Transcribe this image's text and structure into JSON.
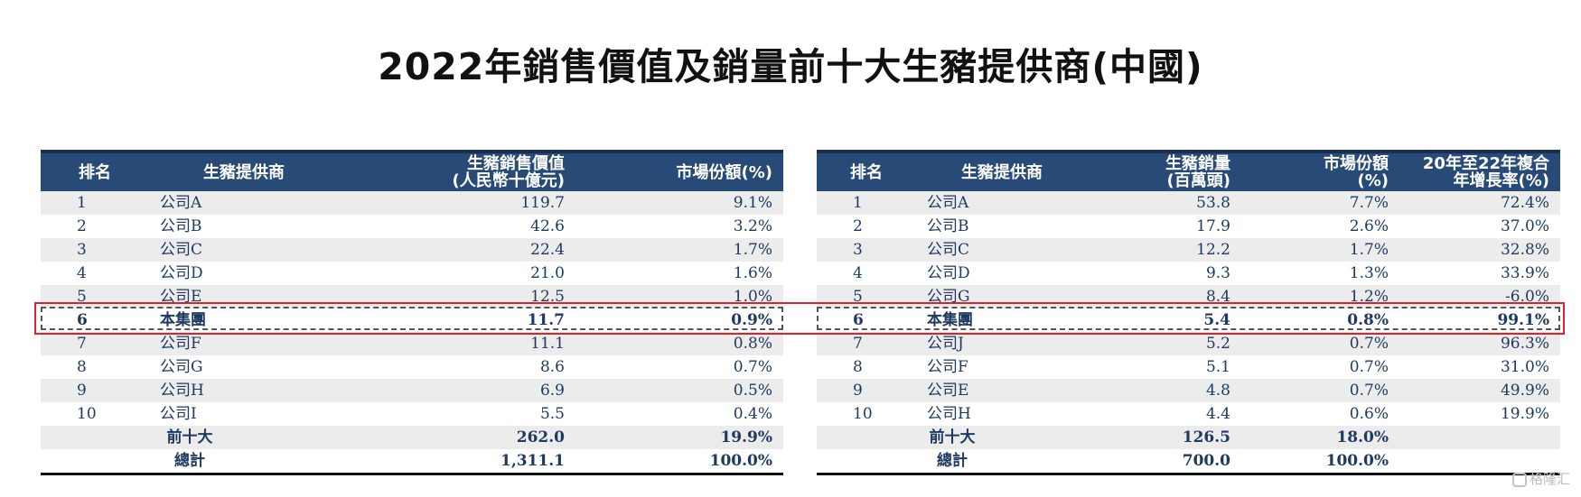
{
  "title": "2022年銷售價值及銷量前十大生豬提供商(中國)",
  "left_table": {
    "headers": [
      "排名",
      "生豬提供商",
      "生豬銷售價值\n(人民幣十億元)",
      "市場份額(%)"
    ],
    "rows": [
      [
        "1",
        "公司A",
        "119.7",
        "9.1%"
      ],
      [
        "2",
        "公司B",
        "42.6",
        "3.2%"
      ],
      [
        "3",
        "公司C",
        "22.4",
        "1.7%"
      ],
      [
        "4",
        "公司D",
        "21.0",
        "1.6%"
      ],
      [
        "5",
        "公司E",
        "12.5",
        "1.0%"
      ],
      [
        "6",
        "本集團",
        "11.7",
        "0.9%"
      ],
      [
        "7",
        "公司F",
        "11.1",
        "0.8%"
      ],
      [
        "8",
        "公司G",
        "8.6",
        "0.7%"
      ],
      [
        "9",
        "公司H",
        "6.9",
        "0.5%"
      ],
      [
        "10",
        "公司I",
        "5.5",
        "0.4%"
      ]
    ],
    "totals": [
      [
        "前十大",
        "262.0",
        "19.9%"
      ],
      [
        "總計",
        "1,311.1",
        "100.0%"
      ]
    ]
  },
  "right_table": {
    "headers": [
      "排名",
      "生豬提供商",
      "生豬銷量\n(百萬頭)",
      "市場份額\n(%)",
      "20年至22年複合\n年增長率(%)"
    ],
    "rows": [
      [
        "1",
        "公司A",
        "53.8",
        "7.7%",
        "72.4%"
      ],
      [
        "2",
        "公司B",
        "17.9",
        "2.6%",
        "37.0%"
      ],
      [
        "3",
        "公司C",
        "12.2",
        "1.7%",
        "32.8%"
      ],
      [
        "4",
        "公司D",
        "9.3",
        "1.3%",
        "33.9%"
      ],
      [
        "5",
        "公司G",
        "8.4",
        "1.2%",
        "-6.0%"
      ],
      [
        "6",
        "本集團",
        "5.4",
        "0.8%",
        "99.1%"
      ],
      [
        "7",
        "公司J",
        "5.2",
        "0.7%",
        "96.3%"
      ],
      [
        "8",
        "公司F",
        "5.1",
        "0.7%",
        "31.0%"
      ],
      [
        "9",
        "公司E",
        "4.8",
        "0.7%",
        "49.9%"
      ],
      [
        "10",
        "公司H",
        "4.4",
        "0.6%",
        "19.9%"
      ]
    ],
    "totals": [
      [
        "前十大",
        "126.5",
        "18.0%",
        ""
      ],
      [
        "總計",
        "700.0",
        "100.0%",
        ""
      ]
    ]
  },
  "highlighted_rank": "6",
  "colors": {
    "header_bg": "#274a76",
    "highlight_border": "#e1202a",
    "text": "#1f3a60"
  },
  "watermark": "格隆汇"
}
